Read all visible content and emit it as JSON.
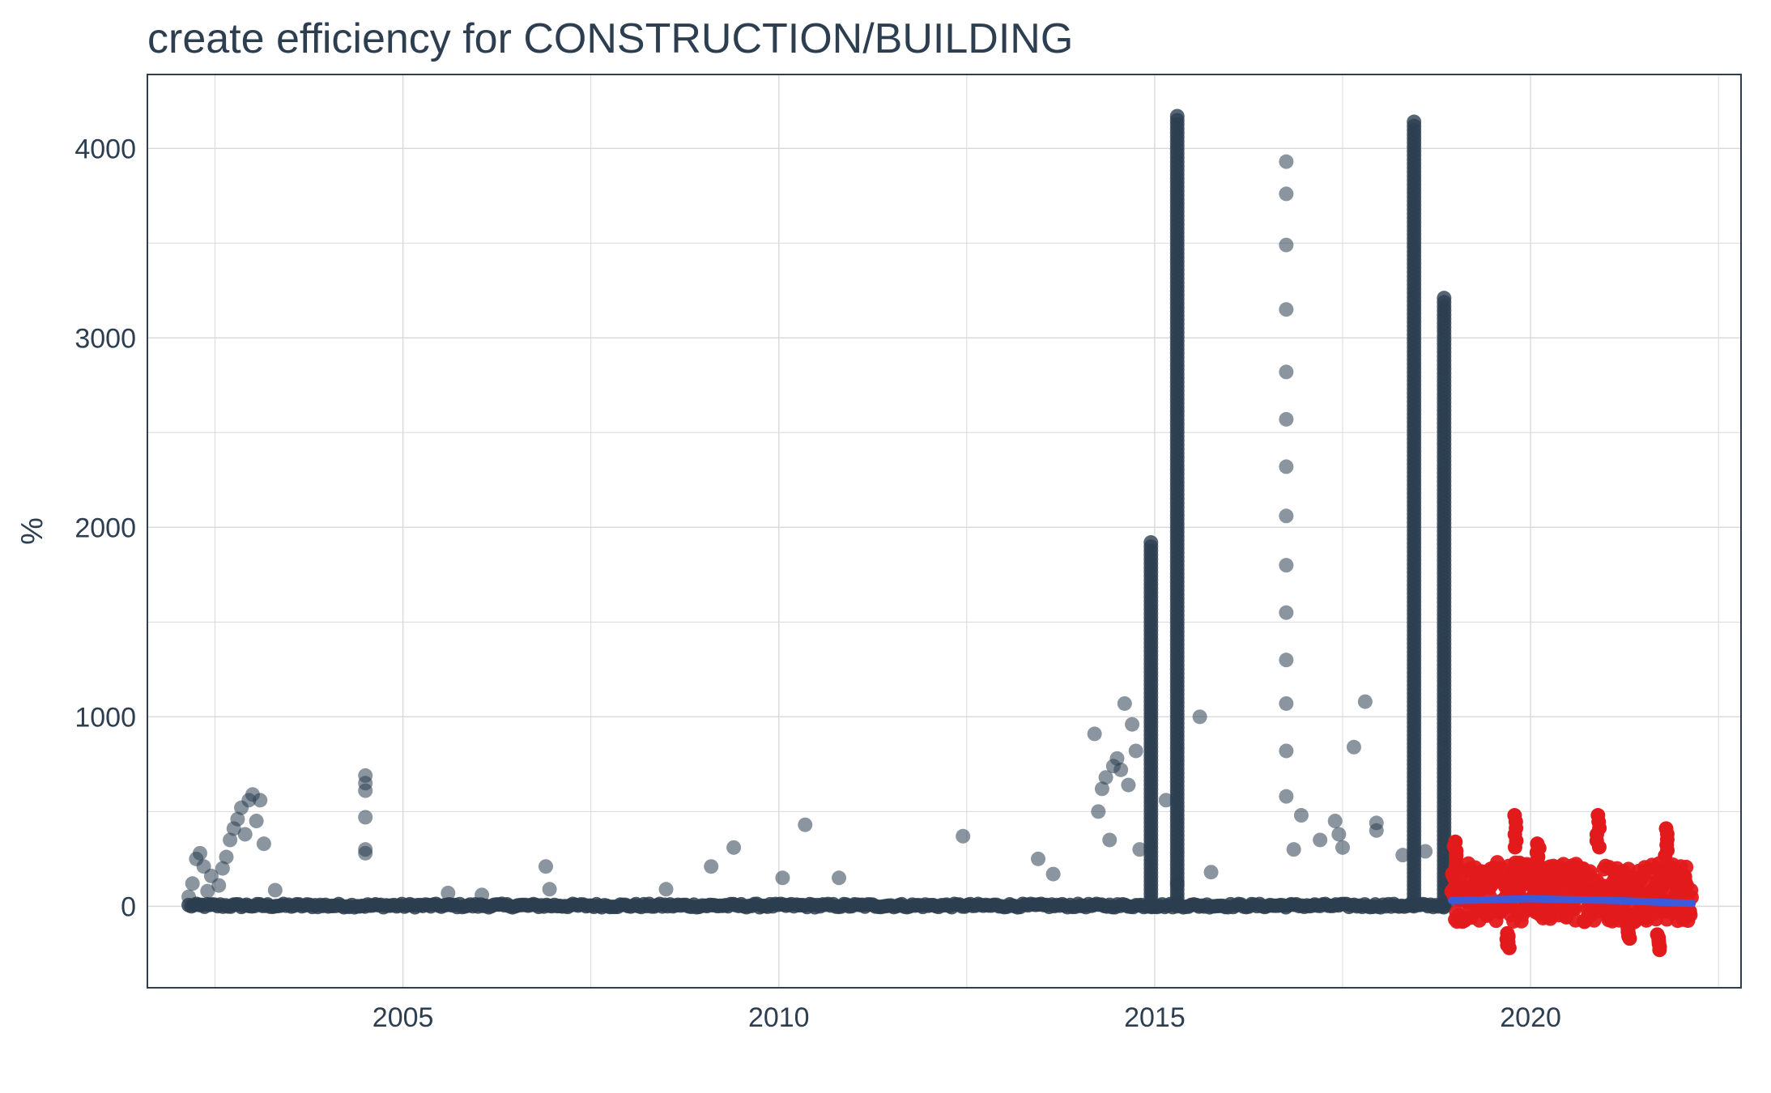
{
  "chart_data": {
    "type": "scatter",
    "title": "create efficiency for CONSTRUCTION/BUILDING",
    "xlabel": "",
    "ylabel": "%",
    "xlim": [
      2001.6,
      2022.8
    ],
    "ylim": [
      -430,
      4390
    ],
    "x_ticks": [
      2005,
      2010,
      2015,
      2020
    ],
    "x_tick_labels": [
      "2005",
      "2010",
      "2015",
      "2020"
    ],
    "y_ticks": [
      0,
      1000,
      2000,
      3000,
      4000
    ],
    "y_tick_labels": [
      "0",
      "1000",
      "2000",
      "3000",
      "4000"
    ],
    "grid": true,
    "legend": "none",
    "colors": {
      "history": "#2c3e50",
      "forecast": "#e31a1c",
      "trend": "#3b5bdb",
      "grid": "#d9d9d9",
      "panel_border": "#2c3e50"
    },
    "series": [
      {
        "role": "history",
        "points": [
          [
            2002.15,
            50
          ],
          [
            2002.2,
            120
          ],
          [
            2002.25,
            250
          ],
          [
            2002.3,
            280
          ],
          [
            2002.35,
            210
          ],
          [
            2002.45,
            160
          ],
          [
            2002.55,
            110
          ],
          [
            2002.65,
            260
          ],
          [
            2002.7,
            350
          ],
          [
            2002.75,
            410
          ],
          [
            2002.8,
            460
          ],
          [
            2002.85,
            520
          ],
          [
            2002.9,
            380
          ],
          [
            2002.95,
            560
          ],
          [
            2003.0,
            590
          ],
          [
            2003.05,
            450
          ],
          [
            2003.1,
            560
          ],
          [
            2003.15,
            330
          ],
          [
            2002.6,
            200
          ],
          [
            2002.4,
            80
          ],
          [
            2003.3,
            85
          ],
          [
            2004.5,
            690
          ],
          [
            2004.5,
            650
          ],
          [
            2004.5,
            610
          ],
          [
            2004.5,
            470
          ],
          [
            2004.5,
            300
          ],
          [
            2004.5,
            280
          ],
          [
            2005.6,
            70
          ],
          [
            2006.05,
            60
          ],
          [
            2006.9,
            210
          ],
          [
            2006.95,
            90
          ],
          [
            2008.5,
            90
          ],
          [
            2009.1,
            210
          ],
          [
            2009.4,
            310
          ],
          [
            2010.05,
            150
          ],
          [
            2010.35,
            430
          ],
          [
            2010.8,
            150
          ],
          [
            2012.45,
            370
          ],
          [
            2013.45,
            250
          ],
          [
            2013.65,
            170
          ],
          [
            2014.2,
            910
          ],
          [
            2014.25,
            500
          ],
          [
            2014.3,
            620
          ],
          [
            2014.35,
            680
          ],
          [
            2014.4,
            350
          ],
          [
            2014.45,
            740
          ],
          [
            2014.5,
            780
          ],
          [
            2014.55,
            720
          ],
          [
            2014.6,
            1070
          ],
          [
            2014.65,
            640
          ],
          [
            2014.7,
            960
          ],
          [
            2014.75,
            820
          ],
          [
            2014.8,
            300
          ],
          [
            2015.15,
            560
          ],
          [
            2015.3,
            120
          ],
          [
            2015.6,
            1000
          ],
          [
            2015.75,
            180
          ],
          [
            2016.75,
            3930
          ],
          [
            2016.75,
            3760
          ],
          [
            2016.75,
            3490
          ],
          [
            2016.75,
            3150
          ],
          [
            2016.75,
            2820
          ],
          [
            2016.75,
            2570
          ],
          [
            2016.75,
            2320
          ],
          [
            2016.75,
            2060
          ],
          [
            2016.75,
            1800
          ],
          [
            2016.75,
            1550
          ],
          [
            2016.75,
            1300
          ],
          [
            2016.75,
            1070
          ],
          [
            2016.75,
            820
          ],
          [
            2016.75,
            580
          ],
          [
            2016.85,
            300
          ],
          [
            2016.95,
            480
          ],
          [
            2017.2,
            350
          ],
          [
            2017.4,
            450
          ],
          [
            2017.45,
            380
          ],
          [
            2017.5,
            310
          ],
          [
            2017.65,
            840
          ],
          [
            2017.8,
            1080
          ],
          [
            2017.95,
            440
          ],
          [
            2017.95,
            400
          ],
          [
            2018.3,
            270
          ],
          [
            2018.6,
            290
          ]
        ],
        "vertical_streaks": [
          {
            "x": 2014.95,
            "y_min": 0,
            "y_max": 1920
          },
          {
            "x": 2015.3,
            "y_min": 0,
            "y_max": 4170
          },
          {
            "x": 2018.45,
            "y_min": 0,
            "y_max": 4140
          },
          {
            "x": 2018.85,
            "y_min": 0,
            "y_max": 3210
          }
        ],
        "baseline": {
          "x_start": 2002.15,
          "x_end": 2018.9,
          "y": 0
        }
      },
      {
        "role": "forecast",
        "x_range": [
          2018.95,
          2022.15
        ],
        "y_typical": [
          -150,
          300
        ],
        "peaks": [
          {
            "x": 2019.8,
            "y": 480
          },
          {
            "x": 2020.1,
            "y": 330
          },
          {
            "x": 2020.9,
            "y": 480
          },
          {
            "x": 2021.8,
            "y": 410
          },
          {
            "x": 2019.0,
            "y": 340
          }
        ],
        "troughs": [
          {
            "x": 2019.7,
            "y": -220
          },
          {
            "x": 2021.7,
            "y": -230
          },
          {
            "x": 2021.3,
            "y": -170
          }
        ]
      },
      {
        "role": "trend",
        "points": [
          [
            2018.95,
            30
          ],
          [
            2019.5,
            35
          ],
          [
            2020.0,
            40
          ],
          [
            2020.5,
            35
          ],
          [
            2021.0,
            32
          ],
          [
            2021.5,
            25
          ],
          [
            2022.15,
            15
          ]
        ]
      }
    ]
  }
}
